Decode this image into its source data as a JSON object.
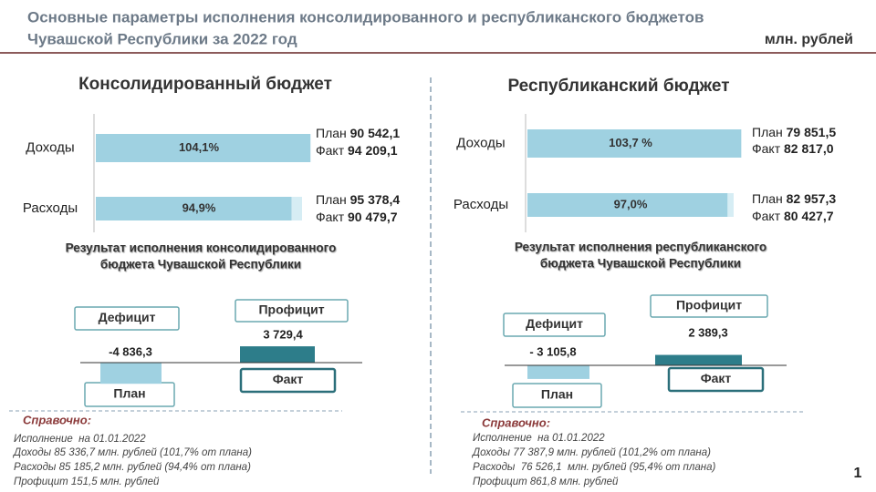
{
  "header": {
    "title_line1": "Основные параметры исполнения консолидированного и республиканского бюджетов",
    "title_line2": "Чувашской Республики за 2022 год",
    "units": "млн. рублей"
  },
  "panels": [
    {
      "title": "Консолидированный бюджет",
      "rows": [
        {
          "label": "Доходы",
          "percent": {
            "value": 104.1,
            "label": "104,1%"
          },
          "plan_label": "План",
          "plan": "90 542,1",
          "fact_label": "Факт",
          "fact": "94 209,1"
        },
        {
          "label": "Расходы",
          "percent": {
            "value": 94.9,
            "label": "94,9%"
          },
          "plan_label": "План",
          "plan": "95 378,4",
          "fact_label": "Факт",
          "fact": "90 479,7"
        }
      ],
      "result_title": [
        "Результат исполнения консолидированного",
        "бюджета Чувашской Республики"
      ],
      "deficit_label": "Дефицит",
      "deficit": {
        "value": -4836.3,
        "label": "-4 836,3"
      },
      "surplus_label": "Профицит",
      "surplus": {
        "value": 3729.4,
        "label": "3 729,4"
      },
      "plan_box": "План",
      "fact_box": "Факт",
      "notes_title": "Справочно:",
      "notes": [
        "Исполнение  на 01.01.2022",
        "Доходы 85 336,7 млн. рублей (101,7% от плана)",
        "Расходы 85 185,2 млн. рублей (94,4% от плана)",
        "Профицит 151,5 млн. рублей"
      ]
    },
    {
      "title": "Республиканский бюджет",
      "rows": [
        {
          "label": "Доходы",
          "percent": {
            "value": 103.7,
            "label": "103,7 %"
          },
          "plan_label": "План",
          "plan": "79 851,5",
          "fact_label": "Факт",
          "fact": "82 817,0"
        },
        {
          "label": "Расходы",
          "percent": {
            "value": 97.0,
            "label": "97,0%"
          },
          "plan_label": "План",
          "plan": "82 957,3",
          "fact_label": "Факт",
          "fact": "80 427,7"
        }
      ],
      "result_title": [
        "Результат исполнения республиканского",
        "бюджета Чувашской Республики"
      ],
      "deficit_label": "Дефицит",
      "deficit": {
        "value": -3105.8,
        "label": "- 3 105,8"
      },
      "surplus_label": "Профицит",
      "surplus": {
        "value": 2389.3,
        "label": "2 389,3"
      },
      "plan_box": "План",
      "fact_box": "Факт",
      "notes_title": "Справочно:",
      "notes": [
        "Исполнение  на 01.01.2022",
        "Доходы 77 387,9 млн. рублей (101,2% от плана)",
        "Расходы  76 526,1  млн. рублей (95,4% от плана)",
        "Профицит 861,8 млн. рублей"
      ]
    }
  ],
  "page_number": "1"
}
